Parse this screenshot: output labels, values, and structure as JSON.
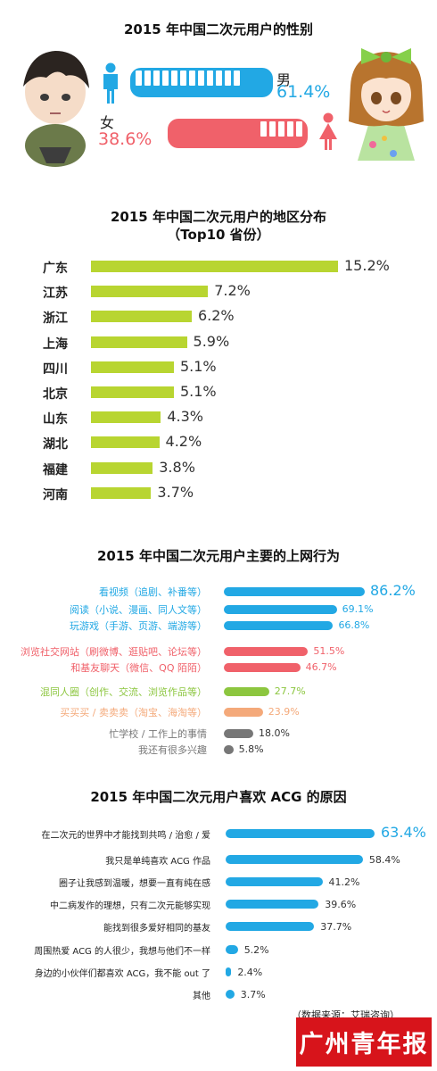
{
  "gender": {
    "title": "2015 年中国二次元用户的性别",
    "male_label": "男",
    "male_pct": "61.4%",
    "female_label": "女",
    "female_pct": "38.6%"
  },
  "colors": {
    "blue": "#22a8e4",
    "red": "#f0616a",
    "lime": "#b8d531",
    "green": "#8cc63f",
    "orange": "#f4a97a",
    "gray": "#777777",
    "masthead": "#d7141b"
  },
  "region": {
    "title_line1": "2015 年中国二次元用户的地区分布",
    "title_line2": "（Top10 省份）"
  },
  "behavior": {
    "title": "2015 年中国二次元用户主要的上网行为"
  },
  "reasons": {
    "title": "2015 年中国二次元用户喜欢 ACG 的原因"
  },
  "footer": {
    "source": "（数据来源：艾瑞咨询）",
    "masthead": "广州青年报"
  },
  "chart_data": [
    {
      "type": "bar",
      "title": "2015 年中国二次元用户的性别",
      "categories": [
        "男",
        "女"
      ],
      "values": [
        61.4,
        38.6
      ],
      "unit": "%"
    },
    {
      "type": "bar",
      "title": "2015 年中国二次元用户的地区分布（Top10 省份）",
      "categories": [
        "广东",
        "江苏",
        "浙江",
        "上海",
        "四川",
        "北京",
        "山东",
        "湖北",
        "福建",
        "河南"
      ],
      "values": [
        15.2,
        7.2,
        6.2,
        5.9,
        5.1,
        5.1,
        4.3,
        4.2,
        3.8,
        3.7
      ],
      "labels": [
        "15.2%",
        "7.2%",
        "6.2%",
        "5.9%",
        "5.1%",
        "5.1%",
        "4.3%",
        "4.2%",
        "3.8%",
        "3.7%"
      ],
      "unit": "%"
    },
    {
      "type": "bar",
      "title": "2015 年中国二次元用户主要的上网行为",
      "categories": [
        "看视频（追剧、补番等）",
        "阅读（小说、漫画、同人文等）",
        "玩游戏（手游、页游、端游等）",
        "浏览社交网站（刷微博、逛贴吧、论坛等）",
        "和基友聊天（微信、QQ 陌陌）",
        "混同人圈（创作、交流、浏览作品等）",
        "买买买 / 卖卖卖（淘宝、海淘等）",
        "忙学校 / 工作上的事情",
        "我还有很多兴趣"
      ],
      "values": [
        86.2,
        69.1,
        66.8,
        51.5,
        46.7,
        27.7,
        23.9,
        18.0,
        5.8
      ],
      "labels": [
        "86.2%",
        "69.1%",
        "66.8%",
        "51.5%",
        "46.7%",
        "27.7%",
        "23.9%",
        "18.0%",
        "5.8%"
      ],
      "colors": [
        "#22a8e4",
        "#22a8e4",
        "#22a8e4",
        "#f0616a",
        "#f0616a",
        "#8cc63f",
        "#f4a97a",
        "#777777",
        "#777777"
      ],
      "unit": "%"
    },
    {
      "type": "bar",
      "title": "2015 年中国二次元用户喜欢 ACG 的原因",
      "categories": [
        "在二次元的世界中才能找到共鸣 / 治愈 / 爱",
        "我只是单纯喜欢 ACG 作品",
        "圈子让我感到温暖，想要一直有纯在感",
        "中二病发作的理想，只有二次元能够实现",
        "能找到很多爱好相同的基友",
        "周围热爱 ACG 的人很少，我想与他们不一样",
        "身边的小伙伴们都喜欢 ACG，我不能 out 了",
        "其他"
      ],
      "values": [
        63.4,
        58.4,
        41.2,
        39.6,
        37.7,
        5.2,
        2.4,
        3.7
      ],
      "labels": [
        "63.4%",
        "58.4%",
        "41.2%",
        "39.6%",
        "37.7%",
        "5.2%",
        "2.4%",
        "3.7%"
      ],
      "unit": "%"
    }
  ]
}
